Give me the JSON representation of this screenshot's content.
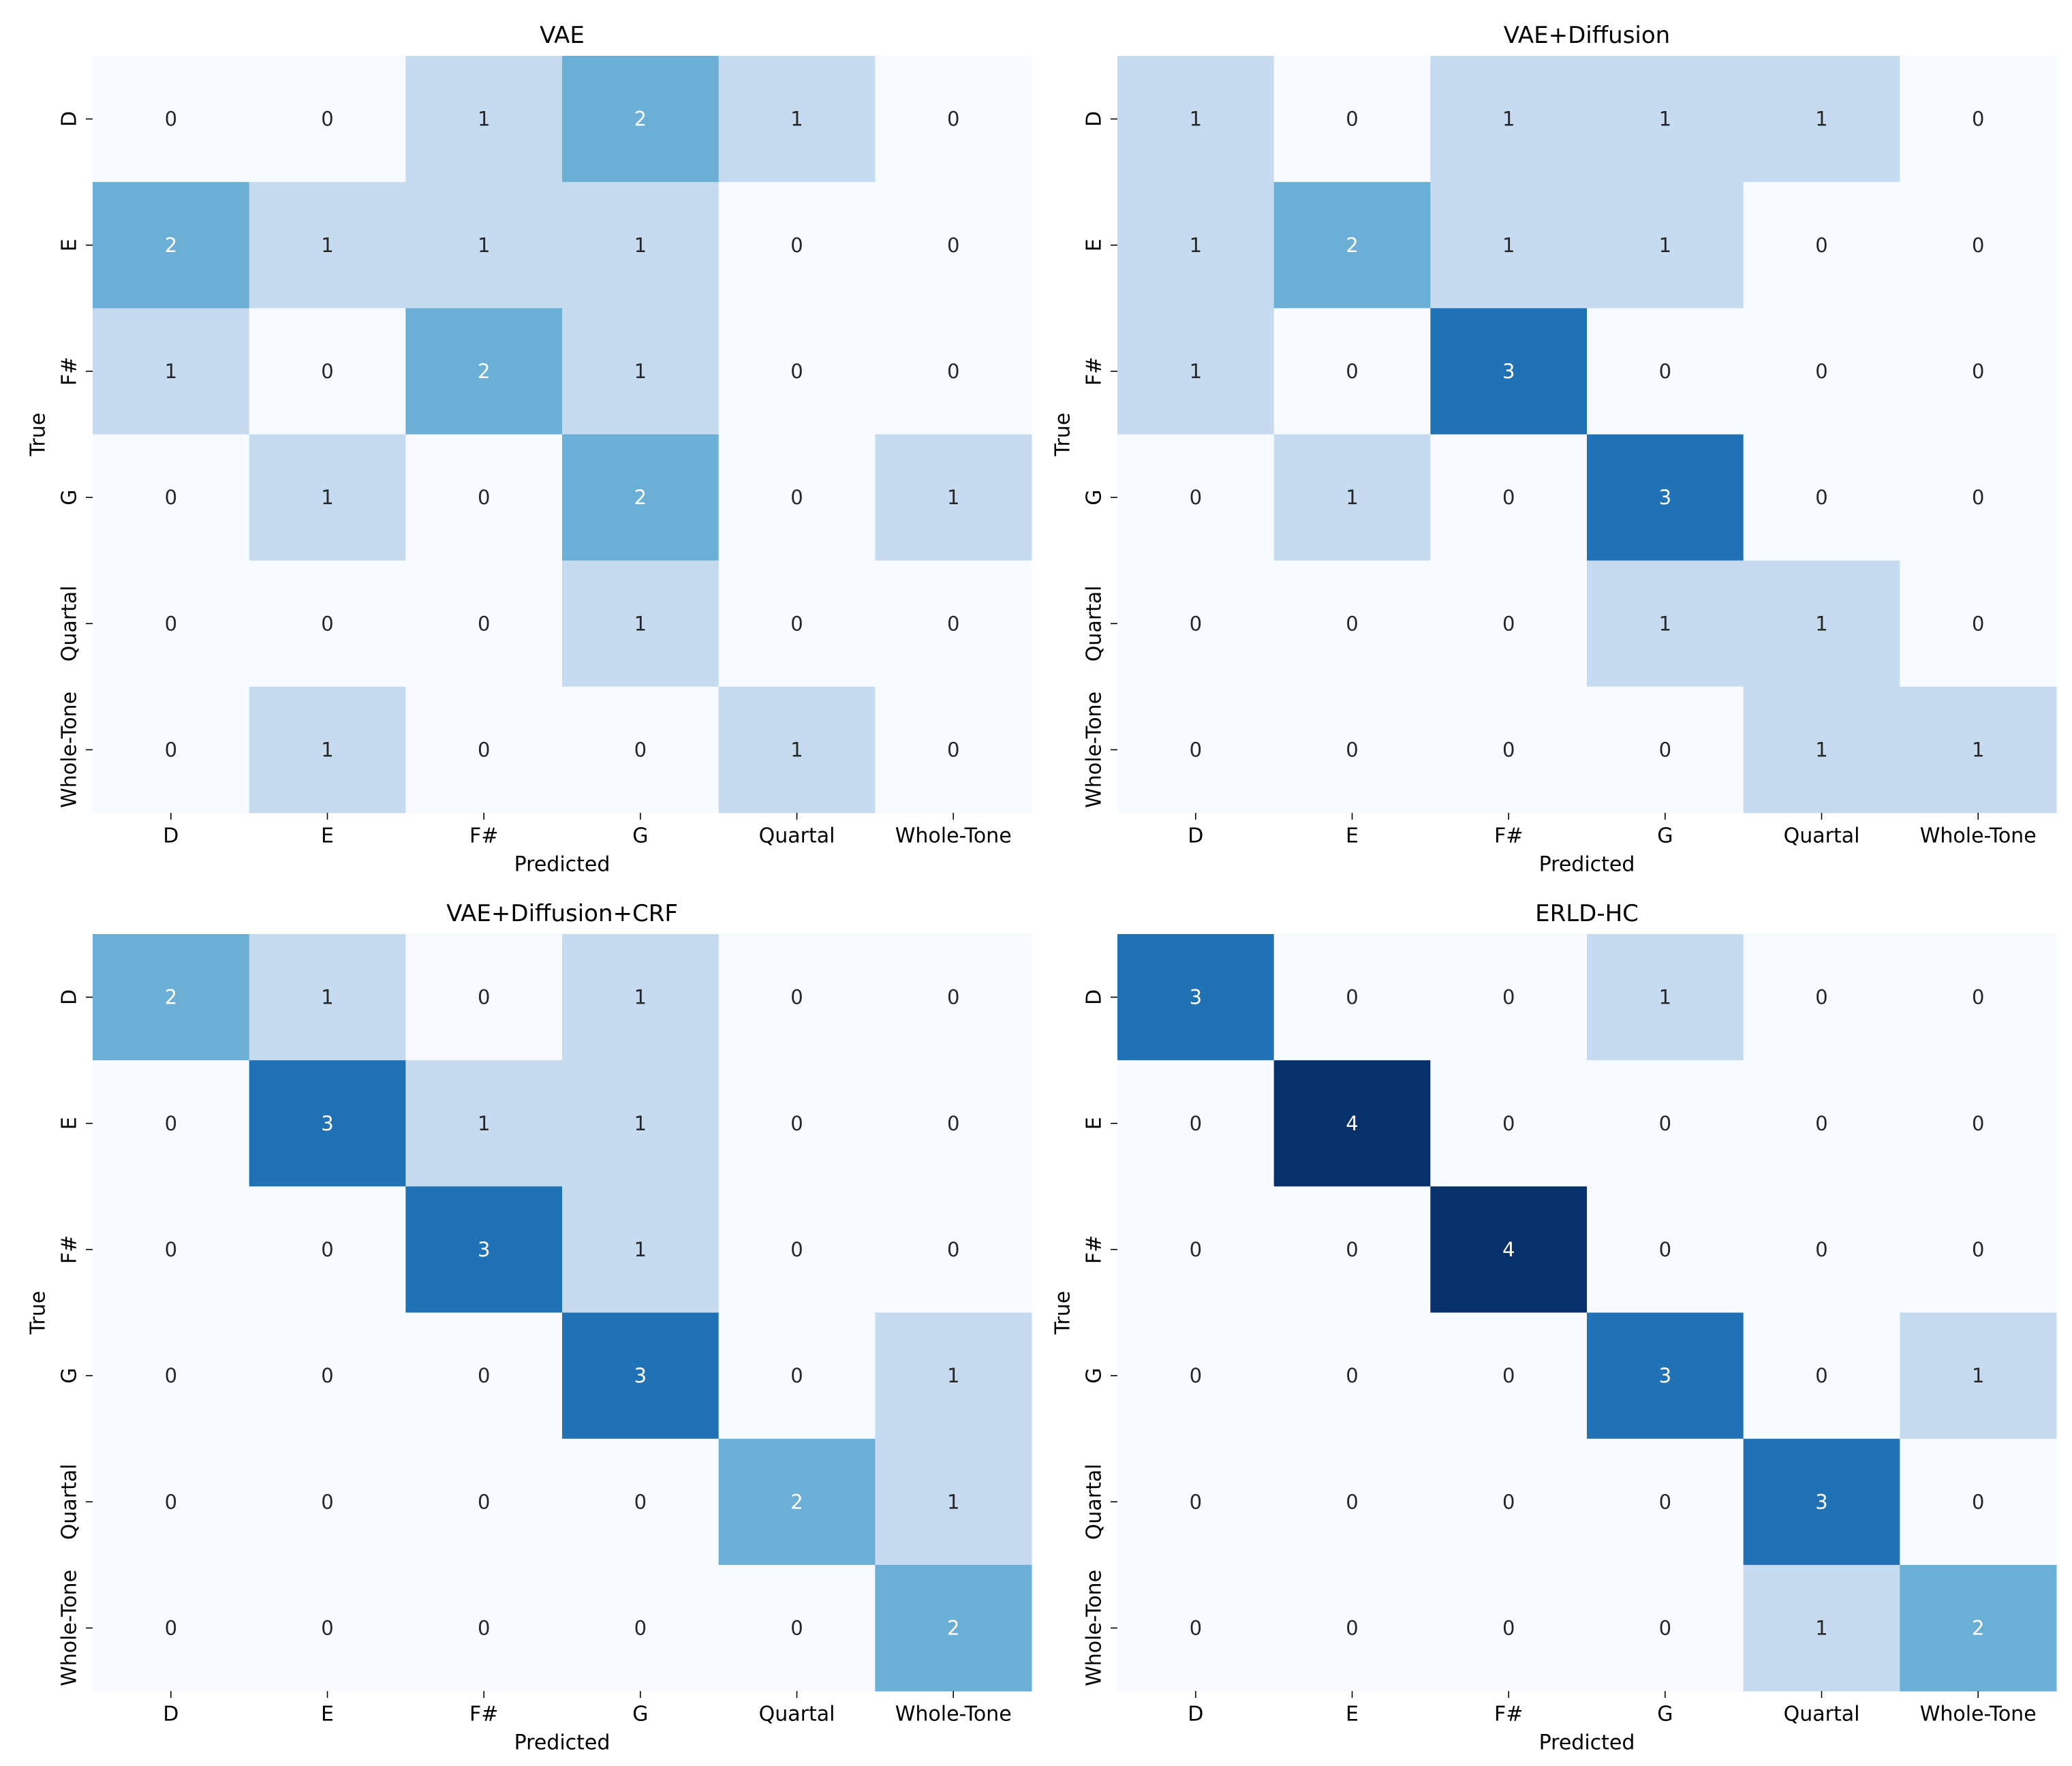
{
  "chart_data": [
    {
      "type": "heatmap",
      "title": "VAE",
      "xlabel": "Predicted",
      "ylabel": "True",
      "x_categories": [
        "D",
        "E",
        "F#",
        "G",
        "Quartal",
        "Whole-Tone"
      ],
      "y_categories": [
        "D",
        "E",
        "F#",
        "G",
        "Quartal",
        "Whole-Tone"
      ],
      "values": [
        [
          0,
          0,
          1,
          2,
          1,
          0
        ],
        [
          2,
          1,
          1,
          1,
          0,
          0
        ],
        [
          1,
          0,
          2,
          1,
          0,
          0
        ],
        [
          0,
          1,
          0,
          2,
          0,
          1
        ],
        [
          0,
          0,
          0,
          1,
          0,
          0
        ],
        [
          0,
          1,
          0,
          0,
          1,
          0
        ]
      ]
    },
    {
      "type": "heatmap",
      "title": "VAE+Diffusion",
      "xlabel": "Predicted",
      "ylabel": "True",
      "x_categories": [
        "D",
        "E",
        "F#",
        "G",
        "Quartal",
        "Whole-Tone"
      ],
      "y_categories": [
        "D",
        "E",
        "F#",
        "G",
        "Quartal",
        "Whole-Tone"
      ],
      "values": [
        [
          1,
          0,
          1,
          1,
          1,
          0
        ],
        [
          1,
          2,
          1,
          1,
          0,
          0
        ],
        [
          1,
          0,
          3,
          0,
          0,
          0
        ],
        [
          0,
          1,
          0,
          3,
          0,
          0
        ],
        [
          0,
          0,
          0,
          1,
          1,
          0
        ],
        [
          0,
          0,
          0,
          0,
          1,
          1
        ]
      ]
    },
    {
      "type": "heatmap",
      "title": "VAE+Diffusion+CRF",
      "xlabel": "Predicted",
      "ylabel": "True",
      "x_categories": [
        "D",
        "E",
        "F#",
        "G",
        "Quartal",
        "Whole-Tone"
      ],
      "y_categories": [
        "D",
        "E",
        "F#",
        "G",
        "Quartal",
        "Whole-Tone"
      ],
      "values": [
        [
          2,
          1,
          0,
          1,
          0,
          0
        ],
        [
          0,
          3,
          1,
          1,
          0,
          0
        ],
        [
          0,
          0,
          3,
          1,
          0,
          0
        ],
        [
          0,
          0,
          0,
          3,
          0,
          1
        ],
        [
          0,
          0,
          0,
          0,
          2,
          1
        ],
        [
          0,
          0,
          0,
          0,
          0,
          2
        ]
      ]
    },
    {
      "type": "heatmap",
      "title": "ERLD-HC",
      "xlabel": "Predicted",
      "ylabel": "True",
      "x_categories": [
        "D",
        "E",
        "F#",
        "G",
        "Quartal",
        "Whole-Tone"
      ],
      "y_categories": [
        "D",
        "E",
        "F#",
        "G",
        "Quartal",
        "Whole-Tone"
      ],
      "values": [
        [
          3,
          0,
          0,
          1,
          0,
          0
        ],
        [
          0,
          4,
          0,
          0,
          0,
          0
        ],
        [
          0,
          0,
          4,
          0,
          0,
          0
        ],
        [
          0,
          0,
          0,
          3,
          0,
          1
        ],
        [
          0,
          0,
          0,
          0,
          3,
          0
        ],
        [
          0,
          0,
          0,
          0,
          1,
          2
        ]
      ]
    }
  ],
  "colors": {
    "0": "#f7fbff",
    "1": "#c6dbef",
    "2": "#6baed6",
    "3": "#2171b5",
    "4": "#08306b",
    "text_dark": "#262626",
    "text_light": "#ffffff"
  }
}
